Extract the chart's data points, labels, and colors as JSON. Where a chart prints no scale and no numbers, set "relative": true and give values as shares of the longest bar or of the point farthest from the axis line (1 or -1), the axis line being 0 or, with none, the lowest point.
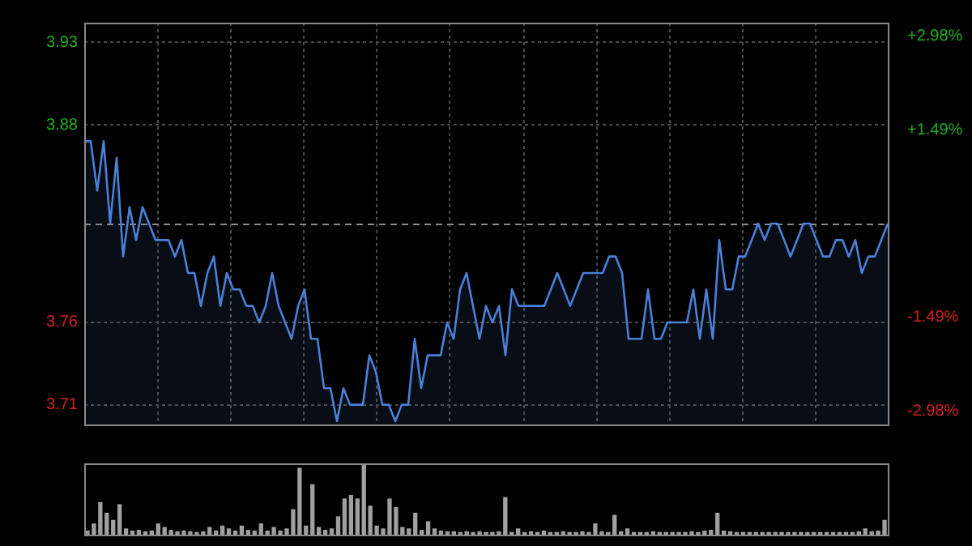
{
  "chart_data": [
    {
      "type": "area",
      "color": "#4a80d8",
      "categories": [
        null,
        null,
        null,
        null,
        null,
        null,
        null,
        null,
        null,
        null,
        null,
        null,
        null,
        null,
        null,
        null,
        null,
        null,
        null,
        null,
        null,
        null,
        null,
        null,
        null,
        null,
        null,
        null,
        null,
        null,
        null,
        null,
        null,
        null,
        null,
        null,
        null,
        null,
        null,
        null,
        null,
        null,
        null,
        null,
        null,
        null,
        null,
        null,
        null,
        null,
        null,
        null,
        null,
        null,
        null,
        null,
        null,
        null,
        null,
        null,
        null,
        null,
        null,
        null,
        null,
        null,
        null,
        null,
        null,
        null,
        null,
        null,
        null,
        null,
        null,
        null,
        null,
        null,
        null,
        null,
        null,
        null,
        null,
        null,
        null,
        null,
        null,
        null,
        null,
        null,
        null,
        null,
        null,
        null,
        null,
        null,
        null,
        null,
        null,
        null,
        null,
        null,
        null,
        null,
        null,
        null,
        null,
        null,
        null,
        null,
        null,
        null,
        null,
        null,
        null,
        null,
        null,
        null,
        null,
        null,
        null,
        null,
        null,
        null,
        null
      ],
      "values": [
        3.87,
        3.87,
        3.84,
        3.87,
        3.82,
        3.86,
        3.8,
        3.83,
        3.81,
        3.83,
        3.82,
        3.81,
        3.81,
        3.81,
        3.8,
        3.81,
        3.79,
        3.79,
        3.77,
        3.79,
        3.8,
        3.77,
        3.79,
        3.78,
        3.78,
        3.77,
        3.77,
        3.76,
        3.77,
        3.79,
        3.77,
        3.76,
        3.75,
        3.77,
        3.78,
        3.75,
        3.75,
        3.72,
        3.72,
        3.7,
        3.72,
        3.71,
        3.71,
        3.71,
        3.74,
        3.73,
        3.71,
        3.71,
        3.7,
        3.71,
        3.71,
        3.75,
        3.72,
        3.74,
        3.74,
        3.74,
        3.76,
        3.75,
        3.78,
        3.79,
        3.77,
        3.75,
        3.77,
        3.76,
        3.77,
        3.74,
        3.78,
        3.77,
        3.77,
        3.77,
        3.77,
        3.77,
        3.78,
        3.79,
        3.78,
        3.77,
        3.78,
        3.79,
        3.79,
        3.79,
        3.79,
        3.8,
        3.8,
        3.79,
        3.75,
        3.75,
        3.75,
        3.78,
        3.75,
        3.75,
        3.76,
        3.76,
        3.76,
        3.76,
        3.78,
        3.75,
        3.78,
        3.75,
        3.81,
        3.78,
        3.78,
        3.8,
        3.8,
        3.81,
        3.82,
        3.81,
        3.82,
        3.82,
        3.81,
        3.8,
        3.81,
        3.82,
        3.82,
        3.81,
        3.8,
        3.8,
        3.81,
        3.81,
        3.8,
        3.81,
        3.79,
        3.8,
        3.8,
        3.81,
        3.82
      ],
      "ylim": [
        3.698,
        3.942
      ],
      "yticks": [
        3.93,
        3.88,
        3.76,
        3.71
      ],
      "y2lim": [
        -3.19,
        3.19
      ],
      "y2ticks": [
        {
          "value": 2.98,
          "label": "+2.98%"
        },
        {
          "value": 1.49,
          "label": "+1.49%"
        },
        {
          "value": -1.49,
          "label": "-1.49%"
        },
        {
          "value": -2.98,
          "label": "-2.98%"
        }
      ],
      "ref_lines": [
        {
          "axis": "y",
          "value": 3.82,
          "line_style": "dashed",
          "color": "#8a8a8a"
        }
      ],
      "grid": true,
      "tick_labels": "y"
    },
    {
      "type": "bar",
      "color": "#a0a0a0",
      "relative": true,
      "tick_labels": false,
      "categories": [
        null,
        null,
        null,
        null,
        null,
        null,
        null,
        null,
        null,
        null,
        null,
        null,
        null,
        null,
        null,
        null,
        null,
        null,
        null,
        null,
        null,
        null,
        null,
        null,
        null,
        null,
        null,
        null,
        null,
        null,
        null,
        null,
        null,
        null,
        null,
        null,
        null,
        null,
        null,
        null,
        null,
        null,
        null,
        null,
        null,
        null,
        null,
        null,
        null,
        null,
        null,
        null,
        null,
        null,
        null,
        null,
        null,
        null,
        null,
        null,
        null,
        null,
        null,
        null,
        null,
        null,
        null,
        null,
        null,
        null,
        null,
        null,
        null,
        null,
        null,
        null,
        null,
        null,
        null,
        null,
        null,
        null,
        null,
        null,
        null,
        null,
        null,
        null,
        null,
        null,
        null,
        null,
        null,
        null,
        null,
        null,
        null,
        null,
        null,
        null,
        null,
        null,
        null,
        null,
        null,
        null,
        null,
        null,
        null,
        null,
        null,
        null,
        null,
        null,
        null,
        null,
        null,
        null,
        null,
        null,
        null,
        null,
        null,
        null,
        null
      ],
      "values": [
        0.05,
        0.15,
        0.45,
        0.3,
        0.2,
        0.42,
        0.08,
        0.05,
        0.06,
        0.04,
        0.05,
        0.15,
        0.1,
        0.06,
        0.04,
        0.05,
        0.04,
        0.03,
        0.04,
        0.1,
        0.05,
        0.12,
        0.08,
        0.05,
        0.12,
        0.06,
        0.05,
        0.15,
        0.05,
        0.1,
        0.05,
        0.08,
        0.35,
        0.93,
        0.12,
        0.7,
        0.1,
        0.06,
        0.08,
        0.25,
        0.5,
        0.55,
        0.5,
        1,
        0.4,
        0.12,
        0.08,
        0.5,
        0.38,
        0.1,
        0.08,
        0.3,
        0.06,
        0.18,
        0.08,
        0.05,
        0.04,
        0.04,
        0.03,
        0.04,
        0.03,
        0.04,
        0.03,
        0.03,
        0.04,
        0.52,
        0.03,
        0.08,
        0.03,
        0.04,
        0.03,
        0.05,
        0.03,
        0.03,
        0.04,
        0.03,
        0.03,
        0.04,
        0.03,
        0.15,
        0.04,
        0.03,
        0.27,
        0.04,
        0.08,
        0.03,
        0.03,
        0.03,
        0.04,
        0.03,
        0.03,
        0.03,
        0.03,
        0.03,
        0.04,
        0.03,
        0.05,
        0.06,
        0.3,
        0.05,
        0.04,
        0.03,
        0.03,
        0.03,
        0.03,
        0.03,
        0.03,
        0.03,
        0.03,
        0.03,
        0.03,
        0.03,
        0.03,
        0.03,
        0.03,
        0.03,
        0.03,
        0.03,
        0.03,
        0.03,
        0.04,
        0.08,
        0.04,
        0.05,
        0.2
      ]
    }
  ]
}
